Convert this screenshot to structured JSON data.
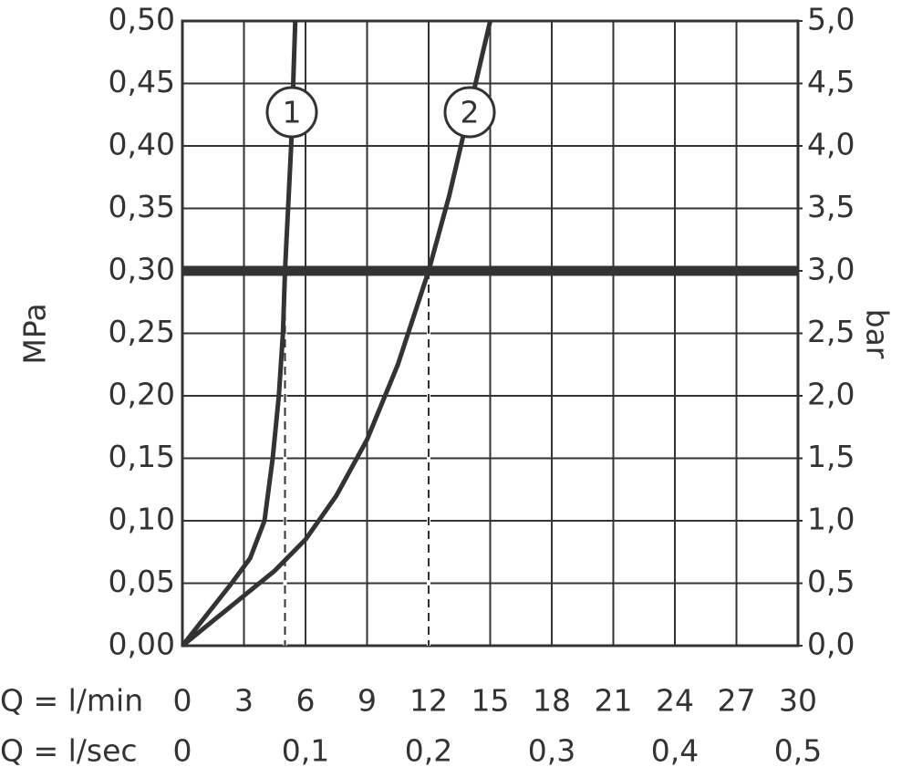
{
  "chart_data": {
    "type": "line",
    "ylabel": "MPa",
    "y2label": "bar",
    "xlabel": "Q = l/min",
    "x2label": "Q = l/sec",
    "xlim": [
      0,
      30
    ],
    "xticks": [
      0,
      3,
      6,
      9,
      12,
      15,
      18,
      21,
      24,
      27,
      30
    ],
    "x2lim": [
      0,
      0.5
    ],
    "x2ticks": [
      0,
      {
        "value": 0.1,
        "label": "0,1"
      },
      {
        "value": 0.2,
        "label": "0,2"
      },
      {
        "value": 0.3,
        "label": "0,3"
      },
      {
        "value": 0.4,
        "label": "0,4"
      },
      {
        "value": 0.5,
        "label": "0,5"
      }
    ],
    "ylim": [
      0,
      0.5
    ],
    "yticks": [
      {
        "value": 0,
        "label": "0,00"
      },
      {
        "value": 0.05,
        "label": "0,05"
      },
      {
        "value": 0.1,
        "label": "0,10"
      },
      {
        "value": 0.15,
        "label": "0,15"
      },
      {
        "value": 0.2,
        "label": "0,20"
      },
      {
        "value": 0.25,
        "label": "0,25"
      },
      {
        "value": 0.3,
        "label": "0,30"
      },
      {
        "value": 0.35,
        "label": "0,35"
      },
      {
        "value": 0.4,
        "label": "0,40"
      },
      {
        "value": 0.45,
        "label": "0,45"
      },
      {
        "value": 0.5,
        "label": "0,50"
      }
    ],
    "y2lim": [
      0,
      5
    ],
    "y2ticks": [
      {
        "value": 0,
        "label": "0,0"
      },
      {
        "value": 0.5,
        "label": "0,5"
      },
      {
        "value": 1,
        "label": "1,0"
      },
      {
        "value": 1.5,
        "label": "1,5"
      },
      {
        "value": 2,
        "label": "2,0"
      },
      {
        "value": 2.5,
        "label": "2,5"
      },
      {
        "value": 3,
        "label": "3,0"
      },
      {
        "value": 3.5,
        "label": "3,5"
      },
      {
        "value": 4,
        "label": "4,0"
      },
      {
        "value": 4.5,
        "label": "4,5"
      },
      {
        "value": 5,
        "label": "5,0"
      }
    ],
    "grid": true,
    "hline": 0.3,
    "vlines": [
      5,
      12
    ],
    "series": [
      {
        "name": "1",
        "color": "#333333",
        "x": [
          0,
          1.2,
          2.4,
          3.3,
          4.0,
          4.4,
          4.7,
          4.9,
          5.0,
          5.15,
          5.3,
          5.5
        ],
        "values": [
          0,
          0.025,
          0.05,
          0.07,
          0.1,
          0.15,
          0.2,
          0.25,
          0.3,
          0.35,
          0.4,
          0.5
        ]
      },
      {
        "name": "2",
        "color": "#333333",
        "x": [
          0,
          1.5,
          3,
          4.5,
          6,
          7.5,
          9,
          10.5,
          12,
          13,
          14,
          15
        ],
        "values": [
          0,
          0.02,
          0.04,
          0.06,
          0.085,
          0.12,
          0.165,
          0.225,
          0.3,
          0.36,
          0.43,
          0.5
        ]
      }
    ]
  }
}
